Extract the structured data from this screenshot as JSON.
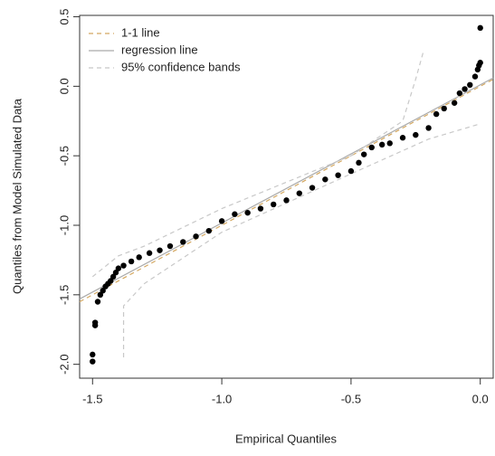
{
  "chart_data": {
    "type": "scatter",
    "x_label": "Empirical Quantiles",
    "y_label": "Quantiles from Model Simulated Data",
    "xlim": [
      -1.55,
      0.05
    ],
    "ylim": [
      -2.1,
      0.51
    ],
    "xticks": [
      -1.5,
      {
        "value": -1,
        "label": "-1.0"
      },
      -0.5,
      {
        "value": 0,
        "label": "0.0"
      }
    ],
    "yticks": [
      {
        "value": -2,
        "label": "-2.0"
      },
      -1.5,
      {
        "value": -1,
        "label": "-1.0"
      },
      -0.5,
      {
        "value": 0,
        "label": "0.0"
      },
      0.5
    ],
    "legend": "top-left",
    "color": "#000000",
    "x": [
      -1.5,
      -1.5,
      -1.49,
      -1.49,
      -1.48,
      -1.47,
      -1.46,
      -1.45,
      -1.44,
      -1.43,
      -1.42,
      -1.41,
      -1.4,
      -1.38,
      -1.35,
      -1.32,
      -1.28,
      -1.24,
      -1.2,
      -1.15,
      -1.1,
      -1.05,
      -1,
      -0.95,
      -0.9,
      -0.85,
      -0.8,
      -0.75,
      -0.7,
      -0.65,
      -0.6,
      -0.55,
      -0.5,
      -0.47,
      -0.45,
      -0.42,
      -0.38,
      -0.35,
      -0.3,
      -0.25,
      -0.2,
      -0.17,
      -0.14,
      -0.1,
      -0.08,
      -0.06,
      -0.04,
      -0.02,
      -0.01,
      -0.005,
      0,
      0
    ],
    "values": [
      -1.98,
      -1.93,
      -1.72,
      -1.7,
      -1.55,
      -1.5,
      -1.47,
      -1.44,
      -1.42,
      -1.4,
      -1.37,
      -1.34,
      -1.31,
      -1.29,
      -1.26,
      -1.23,
      -1.2,
      -1.18,
      -1.15,
      -1.12,
      -1.08,
      -1.04,
      -0.97,
      -0.92,
      -0.91,
      -0.88,
      -0.85,
      -0.82,
      -0.77,
      -0.73,
      -0.67,
      -0.64,
      -0.61,
      -0.55,
      -0.49,
      -0.44,
      -0.42,
      -0.41,
      -0.37,
      -0.35,
      -0.3,
      -0.2,
      -0.16,
      -0.12,
      -0.05,
      -0.02,
      0.01,
      0.07,
      0.12,
      0.15,
      0.17,
      0.42
    ],
    "series": [
      {
        "name": "1-1 line",
        "color": "#d4a860",
        "dash": true,
        "lines": [
          {
            "x": [
              -1.55,
              0.05
            ],
            "values": [
              -1.55,
              0.05
            ]
          }
        ]
      },
      {
        "name": "regression line",
        "color": "#aaaaaa",
        "dash": false,
        "lines": [
          {
            "x": [
              -1.55,
              0.05
            ],
            "values": [
              -1.53,
              0.06
            ]
          }
        ]
      },
      {
        "name": "95% confidence bands",
        "color": "#c8c8c8",
        "dash": true,
        "lines": [
          {
            "x": [
              -1.5,
              -1.4,
              -1.3,
              -1.0,
              -0.5,
              -0.3,
              -0.25,
              -0.22
            ],
            "values": [
              -1.37,
              -1.22,
              -1.15,
              -0.88,
              -0.5,
              -0.25,
              0.05,
              0.25
            ]
          },
          {
            "x": [
              -1.38,
              -1.38,
              -1.3,
              -1.0,
              -0.5,
              -0.2,
              0
            ],
            "values": [
              -1.95,
              -1.58,
              -1.42,
              -1.05,
              -0.63,
              -0.38,
              -0.27
            ]
          }
        ]
      }
    ]
  }
}
